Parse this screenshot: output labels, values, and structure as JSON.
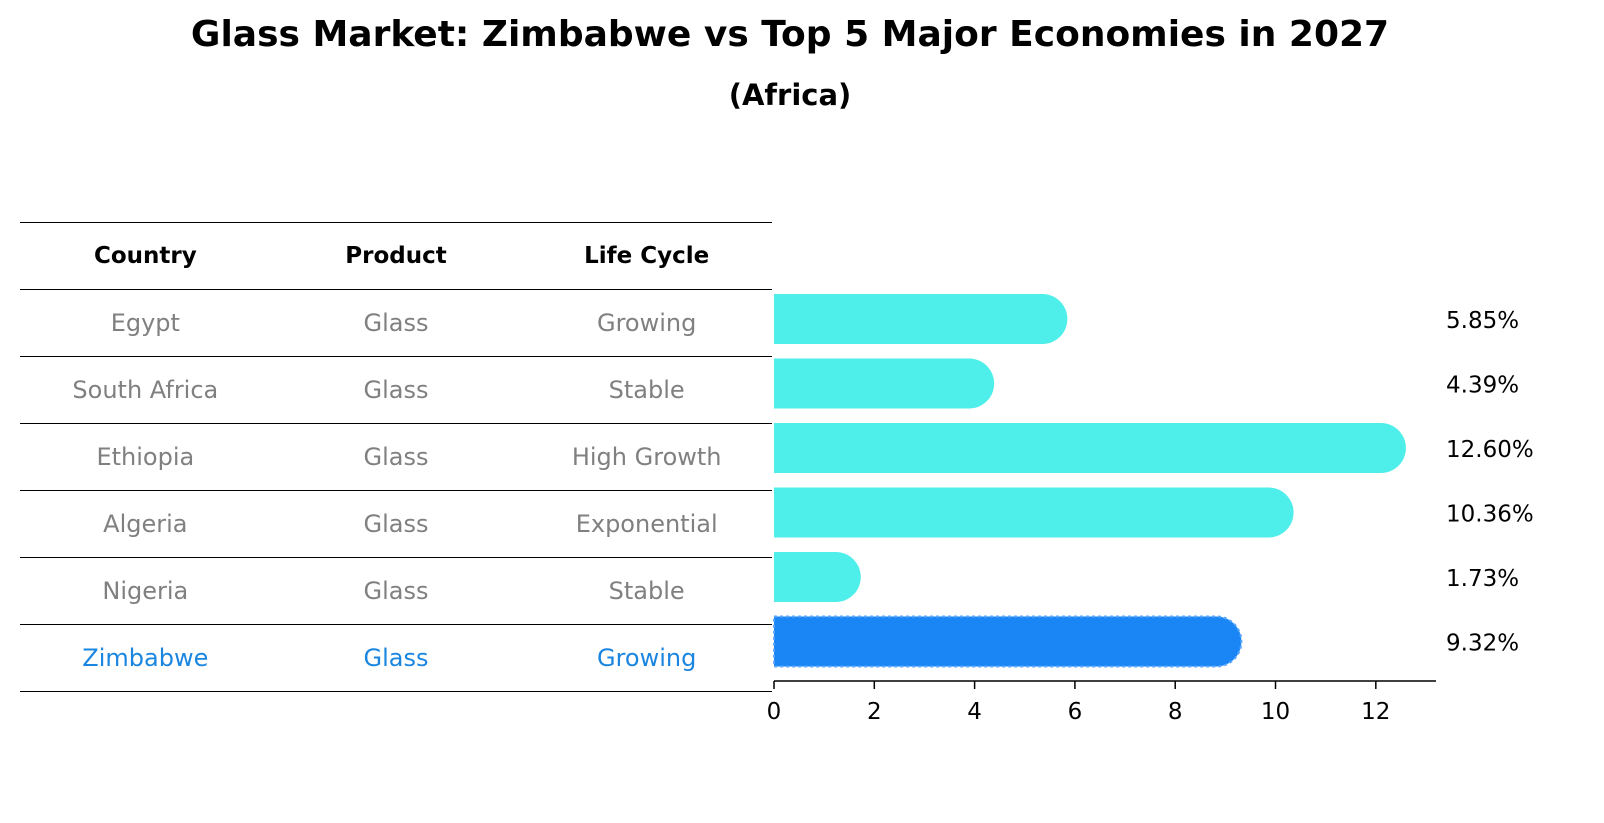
{
  "title": "Glass Market: Zimbabwe vs Top 5 Major Economies in 2027",
  "subtitle": "(Africa)",
  "table": {
    "headers": [
      "Country",
      "Product",
      "Life Cycle"
    ],
    "rows": [
      [
        "Egypt",
        "Glass",
        "Growing"
      ],
      [
        "South Africa",
        "Glass",
        "Stable"
      ],
      [
        "Ethiopia",
        "Glass",
        "High Growth"
      ],
      [
        "Algeria",
        "Glass",
        "Exponential"
      ],
      [
        "Nigeria",
        "Glass",
        "Stable"
      ],
      [
        "Zimbabwe",
        "Glass",
        "Growing"
      ]
    ]
  },
  "colors": {
    "bar": "#4eeeea",
    "highlight_bar": "#1a86f5",
    "highlight_text": "#1a86e0",
    "row_text": "#808080"
  },
  "chart_data": {
    "type": "bar",
    "orientation": "horizontal",
    "categories": [
      "Egypt",
      "South Africa",
      "Ethiopia",
      "Algeria",
      "Nigeria",
      "Zimbabwe"
    ],
    "values": [
      5.85,
      4.39,
      12.6,
      10.36,
      1.73,
      9.32
    ],
    "value_labels": [
      "5.85%",
      "4.39%",
      "12.60%",
      "10.36%",
      "1.73%",
      "9.32%"
    ],
    "highlight": "Zimbabwe",
    "xlim": [
      0,
      13.2
    ],
    "xticks": [
      0,
      2,
      4,
      6,
      8,
      10,
      12
    ],
    "grid": false,
    "legend": "none"
  }
}
